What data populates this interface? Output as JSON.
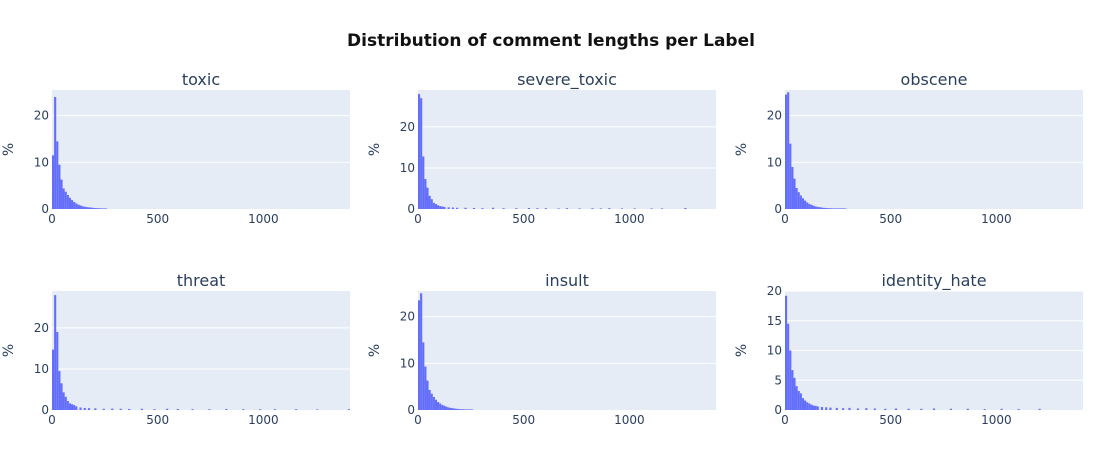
{
  "title": "Distribution of comment lengths per Label",
  "colors": {
    "plot_bg": "#e5ecf6",
    "grid": "#ffffff",
    "bar": "#636efa",
    "text": "#2a3f5f"
  },
  "chart_data": [
    {
      "type": "bar",
      "title": "toxic",
      "ylabel": "%",
      "xlim": [
        0,
        1410
      ],
      "ylim": [
        0,
        25.5
      ],
      "xticks": [
        0,
        500,
        1000
      ],
      "yticks": [
        0,
        10,
        20
      ],
      "bin_width": 10,
      "x": [
        0,
        10,
        20,
        30,
        40,
        50,
        60,
        70,
        80,
        90,
        100,
        110,
        120,
        130,
        140,
        150,
        160,
        170,
        180,
        190,
        200,
        210,
        220,
        230,
        240,
        250
      ],
      "values": [
        11.5,
        24,
        14.5,
        9.5,
        6.3,
        4.4,
        3.7,
        3,
        2.4,
        1.9,
        1.5,
        1.2,
        0.95,
        0.75,
        0.6,
        0.5,
        0.4,
        0.35,
        0.3,
        0.25,
        0.2,
        0.18,
        0.15,
        0.12,
        0.1,
        0.08
      ]
    },
    {
      "type": "bar",
      "title": "severe_toxic",
      "ylabel": "%",
      "xlim": [
        0,
        1410
      ],
      "ylim": [
        0,
        29
      ],
      "xticks": [
        0,
        500,
        1000
      ],
      "yticks": [
        0,
        10,
        20
      ],
      "bin_width": 10,
      "x": [
        0,
        10,
        20,
        30,
        40,
        50,
        60,
        70,
        80,
        90,
        100,
        110,
        120,
        140,
        160,
        180,
        220,
        260,
        300,
        350,
        400,
        460,
        520,
        560,
        600,
        660,
        700,
        760,
        820,
        860,
        900,
        960,
        1020,
        1100,
        1150,
        1260
      ],
      "values": [
        28,
        27,
        12.8,
        7.3,
        5.2,
        3.2,
        2.4,
        1.5,
        1.2,
        0.9,
        0.7,
        0.6,
        0.5,
        0.4,
        0.35,
        0.3,
        0.3,
        0.25,
        0.2,
        0.3,
        0.2,
        0.2,
        0.25,
        0.2,
        0.2,
        0.15,
        0.2,
        0.15,
        0.2,
        0.15,
        0.2,
        0.15,
        0.15,
        0.15,
        0.15,
        0.25
      ]
    },
    {
      "type": "bar",
      "title": "obscene",
      "ylabel": "%",
      "xlim": [
        0,
        1410
      ],
      "ylim": [
        0,
        25.5
      ],
      "xticks": [
        0,
        500,
        1000
      ],
      "yticks": [
        0,
        10,
        20
      ],
      "bin_width": 10,
      "x": [
        0,
        10,
        20,
        30,
        40,
        50,
        60,
        70,
        80,
        90,
        100,
        110,
        120,
        130,
        140,
        150,
        160,
        170,
        180,
        190,
        200,
        210,
        220,
        230,
        240,
        250,
        260,
        270,
        280
      ],
      "values": [
        24.5,
        25,
        14,
        9,
        6.5,
        4.5,
        3.6,
        2.9,
        2.3,
        1.8,
        1.4,
        1.1,
        0.9,
        0.7,
        0.55,
        0.45,
        0.38,
        0.3,
        0.25,
        0.2,
        0.18,
        0.15,
        0.13,
        0.11,
        0.1,
        0.08,
        0.07,
        0.06,
        0.05
      ]
    },
    {
      "type": "bar",
      "title": "threat",
      "ylabel": "%",
      "xlim": [
        0,
        1410
      ],
      "ylim": [
        0,
        29
      ],
      "xticks": [
        0,
        500,
        1000
      ],
      "yticks": [
        0,
        10,
        20
      ],
      "bin_width": 10,
      "x": [
        0,
        10,
        20,
        30,
        40,
        50,
        60,
        70,
        80,
        90,
        100,
        110,
        130,
        150,
        170,
        200,
        240,
        280,
        320,
        360,
        420,
        480,
        540,
        590,
        660,
        740,
        820,
        900,
        980,
        1050,
        1150,
        1250,
        1400
      ],
      "values": [
        14.7,
        28,
        19,
        9.5,
        6.5,
        4.3,
        3.2,
        2.2,
        1.6,
        1.4,
        1.2,
        0.9,
        0.6,
        0.5,
        0.45,
        0.4,
        0.3,
        0.35,
        0.3,
        0.25,
        0.3,
        0.2,
        0.3,
        0.25,
        0.2,
        0.2,
        0.25,
        0.2,
        0.2,
        0.2,
        0.2,
        0.15,
        0.2
      ]
    },
    {
      "type": "bar",
      "title": "insult",
      "ylabel": "%",
      "xlim": [
        0,
        1410
      ],
      "ylim": [
        0,
        25.5
      ],
      "xticks": [
        0,
        500,
        1000
      ],
      "yticks": [
        0,
        10,
        20
      ],
      "bin_width": 10,
      "x": [
        0,
        10,
        20,
        30,
        40,
        50,
        60,
        70,
        80,
        90,
        100,
        110,
        120,
        130,
        140,
        150,
        160,
        170,
        180,
        190,
        200,
        210,
        220,
        230,
        240,
        250
      ],
      "values": [
        23.5,
        25,
        14.5,
        9.3,
        6.3,
        4.3,
        3.5,
        2.8,
        2.2,
        1.7,
        1.4,
        1.1,
        0.9,
        0.7,
        0.55,
        0.45,
        0.38,
        0.3,
        0.25,
        0.2,
        0.18,
        0.15,
        0.12,
        0.1,
        0.08,
        0.06
      ]
    },
    {
      "type": "bar",
      "title": "identity_hate",
      "ylabel": "%",
      "xlim": [
        0,
        1410
      ],
      "ylim": [
        0,
        20
      ],
      "xticks": [
        0,
        500,
        1000
      ],
      "yticks": [
        0,
        5,
        10,
        15,
        20
      ],
      "bin_width": 10,
      "x": [
        0,
        10,
        20,
        30,
        40,
        50,
        60,
        70,
        80,
        90,
        100,
        110,
        120,
        130,
        140,
        150,
        170,
        190,
        210,
        240,
        270,
        300,
        340,
        380,
        420,
        470,
        520,
        580,
        640,
        700,
        780,
        860,
        940,
        1020,
        1100,
        1200
      ],
      "values": [
        19.2,
        14.5,
        10,
        6.7,
        5.4,
        4,
        3.2,
        2.8,
        2,
        1.6,
        1.3,
        1.1,
        0.9,
        0.75,
        0.7,
        0.6,
        0.5,
        0.45,
        0.4,
        0.35,
        0.3,
        0.35,
        0.25,
        0.3,
        0.25,
        0.2,
        0.25,
        0.2,
        0.2,
        0.25,
        0.2,
        0.2,
        0.15,
        0.2,
        0.15,
        0.2
      ]
    }
  ]
}
